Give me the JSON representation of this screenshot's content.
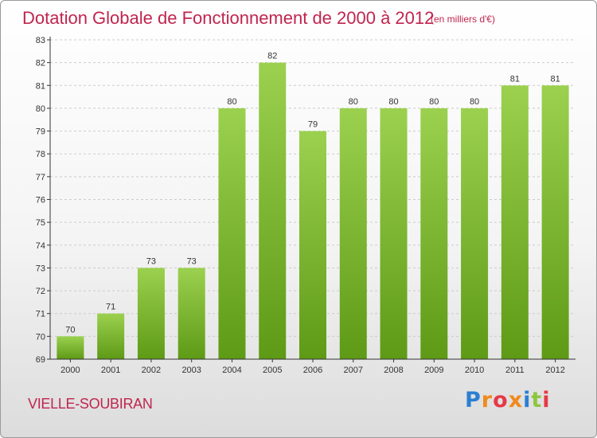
{
  "header": {
    "title": "Dotation Globale de Fonctionnement de 2000 à 2012",
    "subtitle": "(en milliers d'€)"
  },
  "footer": {
    "commune": "VIELLE-SOUBIRAN",
    "logo_letters": [
      "P",
      "r",
      "o",
      "x",
      "i",
      "t",
      "i"
    ],
    "logo_colors": [
      "#2b7fd3",
      "#f08a1c",
      "#e63946",
      "#f08a1c",
      "#2b7fd3",
      "#8cc63f",
      "#e63946"
    ]
  },
  "colors": {
    "title": "#c0254e",
    "bar_top": "#9bd14f",
    "bar_bottom": "#5e9a16",
    "grid": "#cccccc",
    "axis": "#333333"
  },
  "chart_data": {
    "type": "bar",
    "categories": [
      "2000",
      "2001",
      "2002",
      "2003",
      "2004",
      "2005",
      "2006",
      "2007",
      "2008",
      "2009",
      "2010",
      "2011",
      "2012"
    ],
    "values": [
      70,
      71,
      73,
      73,
      80,
      82,
      79,
      80,
      80,
      80,
      80,
      81,
      81
    ],
    "data_labels": [
      "70",
      "71",
      "73",
      "73",
      "80",
      "82",
      "79",
      "80",
      "80",
      "80",
      "80",
      "81",
      "81"
    ],
    "yticks": [
      "69",
      "70",
      "71",
      "72",
      "73",
      "74",
      "75",
      "76",
      "77",
      "78",
      "79",
      "80",
      "81",
      "82",
      "83"
    ],
    "ylim": [
      69,
      83
    ],
    "grid": true,
    "grid_style": "dashed-horizontal"
  }
}
